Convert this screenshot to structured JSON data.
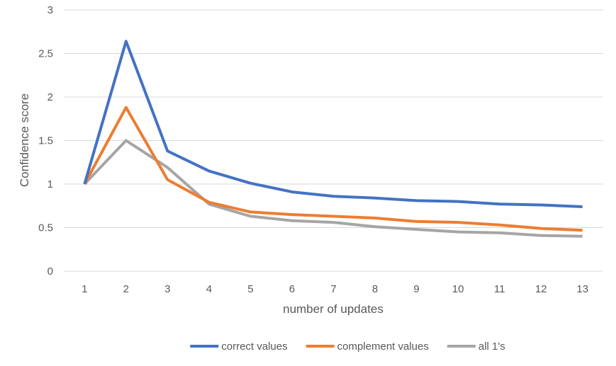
{
  "chart_data": {
    "type": "line",
    "title": "",
    "xlabel": "number of updates",
    "ylabel": "Confidence score",
    "categories": [
      "1",
      "2",
      "3",
      "4",
      "5",
      "6",
      "7",
      "8",
      "9",
      "10",
      "11",
      "12",
      "13"
    ],
    "ylim": [
      0,
      3
    ],
    "yticks": [
      "0",
      "0.5",
      "1",
      "1.5",
      "2",
      "2.5",
      "3"
    ],
    "grid": true,
    "legend_position": "bottom",
    "series": [
      {
        "name": "correct values",
        "color": "#4472c4",
        "values": [
          1.0,
          2.64,
          1.38,
          1.15,
          1.01,
          0.91,
          0.86,
          0.84,
          0.81,
          0.8,
          0.77,
          0.76,
          0.74
        ]
      },
      {
        "name": "complement values",
        "color": "#ed7d31",
        "values": [
          1.0,
          1.88,
          1.05,
          0.79,
          0.68,
          0.65,
          0.63,
          0.61,
          0.57,
          0.56,
          0.53,
          0.49,
          0.47
        ]
      },
      {
        "name": "all 1's",
        "color": "#a5a5a5",
        "values": [
          1.0,
          1.5,
          1.19,
          0.77,
          0.63,
          0.58,
          0.56,
          0.51,
          0.48,
          0.45,
          0.44,
          0.41,
          0.4
        ]
      }
    ]
  }
}
